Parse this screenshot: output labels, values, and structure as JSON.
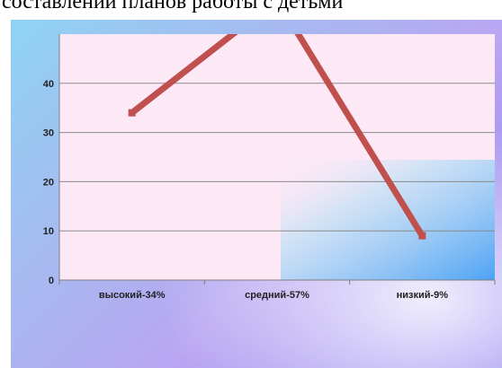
{
  "caption": "составлении планов работы с детьми",
  "chart_data": {
    "type": "line",
    "categories": [
      "высокий-34%",
      "средний-57%",
      "низкий-9%"
    ],
    "series": [
      {
        "values": [
          34,
          57,
          9
        ],
        "color": "#c0504d"
      }
    ],
    "ylim": [
      0,
      50
    ],
    "yticks": [
      0,
      10,
      20,
      30,
      40
    ],
    "grid": true,
    "plot_background": "#fde9f6"
  }
}
